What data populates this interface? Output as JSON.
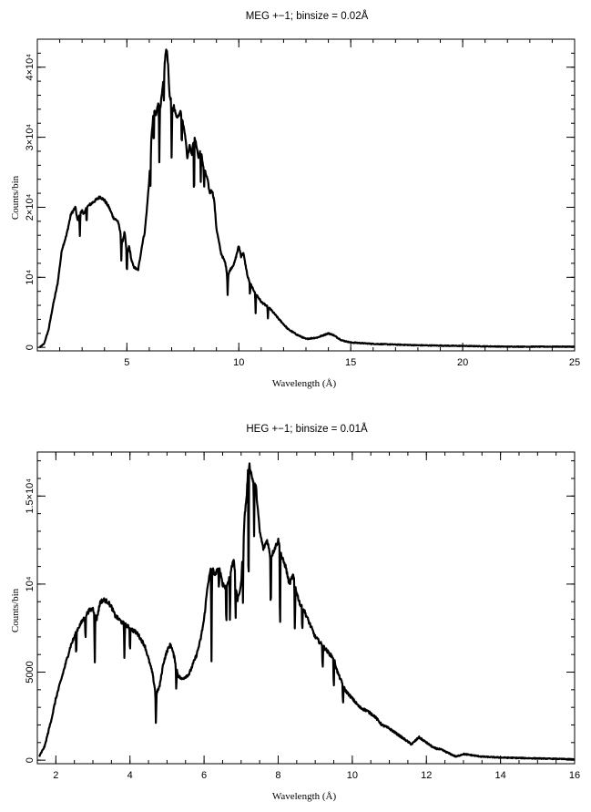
{
  "chart_data": [
    {
      "type": "line",
      "title": "MEG +−1; binsize = 0.02Å",
      "xlabel": "Wavelength (Å)",
      "ylabel": "Counts/bin",
      "xlim": [
        1.0,
        25.0
      ],
      "ylim": [
        -500,
        44000
      ],
      "xticks": [
        {
          "value": 5,
          "label": "5"
        },
        {
          "value": 10,
          "label": "10"
        },
        {
          "value": 15,
          "label": "15"
        },
        {
          "value": 20,
          "label": "20"
        },
        {
          "value": 25,
          "label": "25"
        }
      ],
      "yticks": [
        {
          "value": 0,
          "label": "0"
        },
        {
          "value": 10000,
          "label": "10⁴"
        },
        {
          "value": 20000,
          "label": "2×10⁴"
        },
        {
          "value": 30000,
          "label": "3×10⁴"
        },
        {
          "value": 40000,
          "label": "4×10⁴"
        }
      ],
      "x_minor_step": 1,
      "y_minor_step": 2000,
      "series": [
        {
          "x": [
            1.1,
            1.3,
            1.5,
            1.7,
            1.9,
            2.1,
            2.3,
            2.5,
            2.7,
            2.8,
            2.9,
            3.0,
            3.1,
            3.2,
            3.4,
            3.6,
            3.8,
            4.0,
            4.2,
            4.4,
            4.6,
            4.8,
            4.9,
            5.0,
            5.1,
            5.2,
            5.3,
            5.5,
            5.7,
            5.8,
            5.9,
            6.0,
            6.1,
            6.2,
            6.3,
            6.4,
            6.5,
            6.6,
            6.7,
            6.75,
            6.8,
            6.85,
            6.9,
            7.0,
            7.05,
            7.1,
            7.2,
            7.3,
            7.4,
            7.5,
            7.6,
            7.7,
            7.8,
            7.9,
            8.0,
            8.1,
            8.2,
            8.3,
            8.4,
            8.5,
            8.6,
            8.7,
            8.8,
            8.9,
            9.0,
            9.2,
            9.4,
            9.5,
            9.6,
            9.8,
            10.0,
            10.1,
            10.2,
            10.4,
            10.6,
            10.8,
            11.0,
            11.4,
            11.8,
            12.2,
            12.6,
            13.0,
            13.5,
            14.0,
            14.2,
            14.4,
            14.6,
            15.0,
            16.0,
            17.0,
            18.0,
            20.0,
            22.0,
            25.0
          ],
          "y": [
            0,
            500,
            2500,
            6000,
            9000,
            14000,
            16000,
            19000,
            20000,
            18000,
            19000,
            19500,
            19000,
            20000,
            20500,
            21000,
            21500,
            21000,
            20000,
            18500,
            18000,
            15000,
            16500,
            13000,
            14500,
            12500,
            11500,
            11000,
            15000,
            16500,
            20000,
            24000,
            30000,
            34000,
            33000,
            35000,
            34500,
            37000,
            41000,
            42500,
            42000,
            40000,
            36000,
            35000,
            33500,
            34500,
            33000,
            33000,
            34000,
            32000,
            30500,
            27000,
            29000,
            27500,
            30000,
            29000,
            27000,
            28500,
            26000,
            25000,
            24000,
            22000,
            22500,
            21000,
            17000,
            13500,
            12000,
            10000,
            11000,
            12000,
            14500,
            13000,
            13500,
            10000,
            8500,
            7500,
            6500,
            5500,
            4000,
            2600,
            1800,
            1200,
            1400,
            2000,
            1800,
            1400,
            1000,
            700,
            500,
            400,
            300,
            200,
            100,
            100
          ]
        }
      ],
      "absorption_lines": [
        {
          "x": 2.9,
          "depth": 3000
        },
        {
          "x": 3.2,
          "depth": 2500
        },
        {
          "x": 4.75,
          "depth": 3500
        },
        {
          "x": 5.0,
          "depth": 3000
        },
        {
          "x": 6.05,
          "depth": 5000
        },
        {
          "x": 6.2,
          "depth": 6000
        },
        {
          "x": 6.45,
          "depth": 9000
        },
        {
          "x": 6.65,
          "depth": 5000
        },
        {
          "x": 7.0,
          "depth": 9000
        },
        {
          "x": 7.45,
          "depth": 5000
        },
        {
          "x": 8.0,
          "depth": 10000
        },
        {
          "x": 8.3,
          "depth": 5000
        },
        {
          "x": 8.45,
          "depth": 3000
        },
        {
          "x": 9.5,
          "depth": 2500
        },
        {
          "x": 10.5,
          "depth": 2000
        },
        {
          "x": 10.75,
          "depth": 3000
        },
        {
          "x": 11.3,
          "depth": 1500
        }
      ]
    },
    {
      "type": "line",
      "title": "HEG +−1; binsize = 0.01Å",
      "xlabel": "Wavelength (Å)",
      "ylabel": "Counts/bin",
      "xlim": [
        1.5,
        16.0
      ],
      "ylim": [
        -200,
        17500
      ],
      "xticks": [
        {
          "value": 2,
          "label": "2"
        },
        {
          "value": 4,
          "label": "4"
        },
        {
          "value": 6,
          "label": "6"
        },
        {
          "value": 8,
          "label": "8"
        },
        {
          "value": 10,
          "label": "10"
        },
        {
          "value": 12,
          "label": "12"
        },
        {
          "value": 14,
          "label": "14"
        },
        {
          "value": 16,
          "label": "16"
        }
      ],
      "yticks": [
        {
          "value": 0,
          "label": "0"
        },
        {
          "value": 5000,
          "label": "5000"
        },
        {
          "value": 10000,
          "label": "10⁴"
        },
        {
          "value": 15000,
          "label": "1.5×10⁴"
        }
      ],
      "x_minor_step": 0.5,
      "y_minor_step": 1000,
      "series": [
        {
          "x": [
            1.55,
            1.7,
            1.9,
            2.0,
            2.2,
            2.4,
            2.6,
            2.8,
            2.9,
            3.0,
            3.1,
            3.2,
            3.3,
            3.4,
            3.5,
            3.6,
            3.8,
            4.0,
            4.2,
            4.4,
            4.6,
            4.7,
            4.8,
            4.9,
            5.0,
            5.1,
            5.2,
            5.3,
            5.4,
            5.6,
            5.8,
            5.9,
            6.0,
            6.1,
            6.2,
            6.3,
            6.4,
            6.5,
            6.6,
            6.7,
            6.8,
            6.9,
            7.0,
            7.1,
            7.15,
            7.2,
            7.3,
            7.4,
            7.5,
            7.6,
            7.7,
            7.8,
            7.9,
            8.0,
            8.1,
            8.2,
            8.3,
            8.4,
            8.5,
            8.6,
            8.7,
            8.8,
            8.9,
            9.0,
            9.2,
            9.4,
            9.5,
            9.6,
            9.8,
            10.0,
            10.2,
            10.4,
            10.6,
            10.8,
            11.0,
            11.2,
            11.4,
            11.6,
            11.8,
            12.0,
            12.2,
            12.4,
            12.6,
            12.8,
            13.0,
            13.5,
            14.0,
            15.0,
            16.0
          ],
          "y": [
            200,
            800,
            2500,
            3500,
            5000,
            6500,
            7500,
            8200,
            8500,
            8600,
            8000,
            9000,
            9100,
            9000,
            8700,
            8200,
            7800,
            7500,
            7200,
            6500,
            5000,
            3700,
            4200,
            5500,
            6200,
            6600,
            5800,
            4800,
            4600,
            4900,
            6000,
            6800,
            8000,
            10000,
            11000,
            10500,
            11000,
            10000,
            9800,
            10500,
            11500,
            9000,
            10000,
            14000,
            15000,
            17000,
            16000,
            15500,
            13000,
            12000,
            12500,
            11500,
            12000,
            12500,
            11500,
            11000,
            10000,
            10500,
            9500,
            8800,
            8500,
            8000,
            7500,
            7000,
            6500,
            6000,
            5800,
            5000,
            4000,
            3500,
            3000,
            2800,
            2500,
            2000,
            1800,
            1500,
            1200,
            900,
            1300,
            1000,
            700,
            600,
            400,
            200,
            350,
            200,
            150,
            100,
            50
          ]
        }
      ],
      "absorption_lines": [
        {
          "x": 2.55,
          "depth": 1500
        },
        {
          "x": 2.8,
          "depth": 1500
        },
        {
          "x": 3.05,
          "depth": 3000
        },
        {
          "x": 3.85,
          "depth": 2000
        },
        {
          "x": 4.0,
          "depth": 1500
        },
        {
          "x": 4.7,
          "depth": 1800
        },
        {
          "x": 5.25,
          "depth": 1500
        },
        {
          "x": 6.2,
          "depth": 5500
        },
        {
          "x": 6.4,
          "depth": 1500
        },
        {
          "x": 6.6,
          "depth": 2500
        },
        {
          "x": 6.7,
          "depth": 3000
        },
        {
          "x": 6.85,
          "depth": 2500
        },
        {
          "x": 7.05,
          "depth": 3000
        },
        {
          "x": 7.2,
          "depth": 9000
        },
        {
          "x": 7.35,
          "depth": 3000
        },
        {
          "x": 7.8,
          "depth": 3500
        },
        {
          "x": 8.05,
          "depth": 5500
        },
        {
          "x": 8.45,
          "depth": 3000
        },
        {
          "x": 8.65,
          "depth": 1500
        },
        {
          "x": 9.2,
          "depth": 1500
        },
        {
          "x": 9.5,
          "depth": 2000
        },
        {
          "x": 9.75,
          "depth": 1200
        }
      ]
    }
  ]
}
